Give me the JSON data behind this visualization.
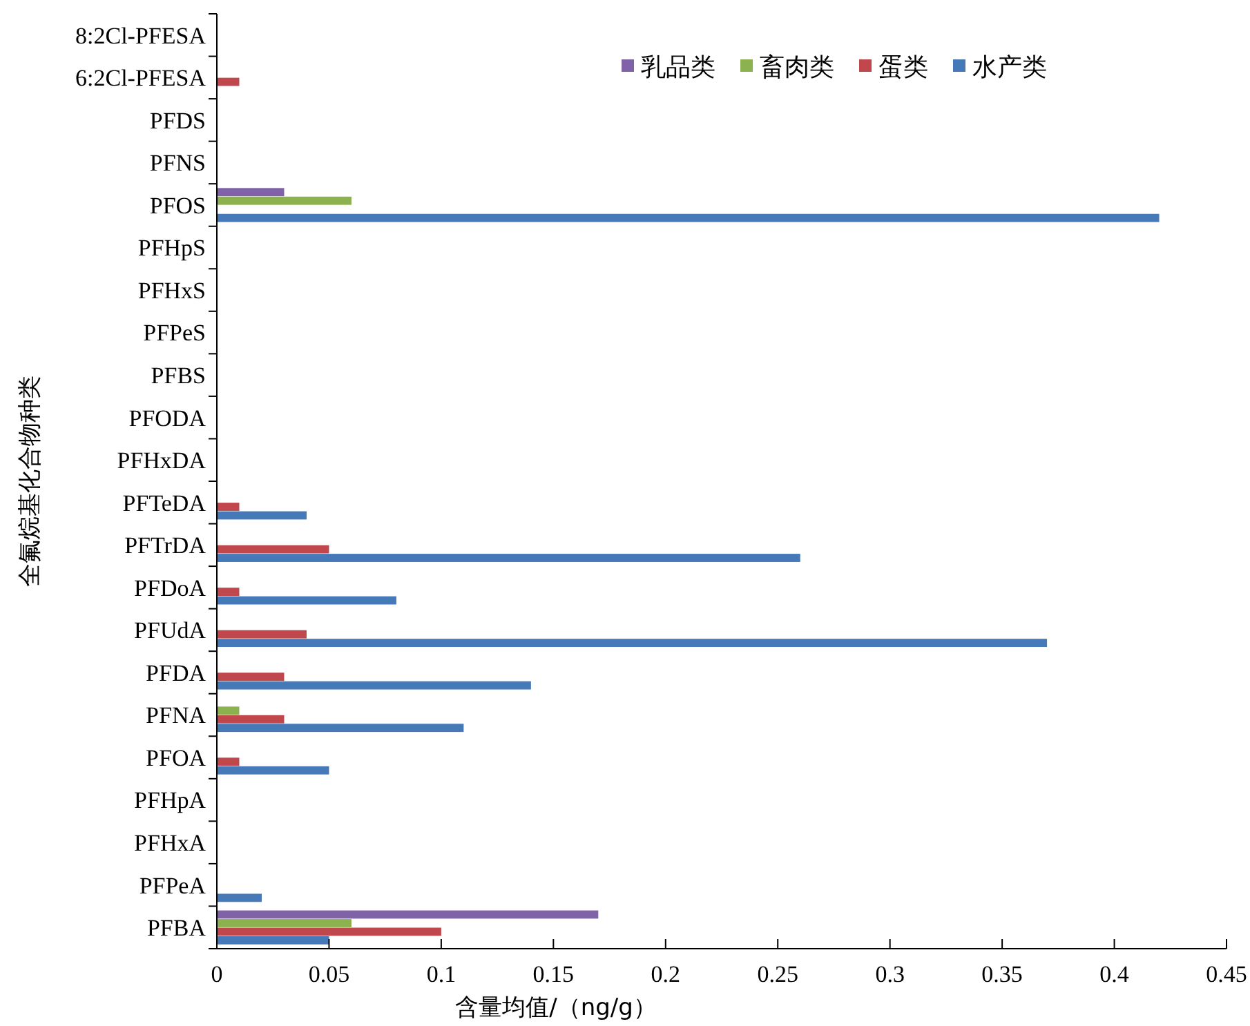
{
  "chart_data": {
    "type": "bar",
    "orientation": "horizontal",
    "xlabel": "含量均值/（ng/g）",
    "ylabel": "全氟烷基化合物种类",
    "categories": [
      "8:2Cl-PFESA",
      "6:2Cl-PFESA",
      "PFDS",
      "PFNS",
      "PFOS",
      "PFHpS",
      "PFHxS",
      "PFPeS",
      "PFBS",
      "PFODA",
      "PFHxDA",
      "PFTeDA",
      "PFTrDA",
      "PFDoA",
      "PFUdA",
      "PFDA",
      "PFNA",
      "PFOA",
      "PFHpA",
      "PFHxA",
      "PFPeA",
      "PFBA"
    ],
    "series": [
      {
        "name": "乳品类",
        "color": "#7f62a8",
        "values": [
          null,
          null,
          null,
          null,
          0.03,
          null,
          null,
          null,
          null,
          null,
          null,
          null,
          null,
          null,
          null,
          null,
          null,
          null,
          null,
          null,
          null,
          0.17
        ]
      },
      {
        "name": "畜肉类",
        "color": "#8cb250",
        "values": [
          null,
          null,
          null,
          null,
          0.06,
          null,
          null,
          null,
          null,
          null,
          null,
          null,
          null,
          null,
          null,
          null,
          0.01,
          null,
          null,
          null,
          null,
          0.06
        ]
      },
      {
        "name": "蛋类",
        "color": "#c0484c",
        "values": [
          null,
          0.01,
          null,
          null,
          null,
          null,
          null,
          null,
          null,
          null,
          null,
          0.01,
          0.05,
          0.01,
          0.04,
          0.03,
          0.03,
          0.01,
          null,
          null,
          null,
          0.1
        ]
      },
      {
        "name": "水产类",
        "color": "#4679b8",
        "values": [
          null,
          null,
          null,
          null,
          0.42,
          null,
          null,
          null,
          null,
          null,
          null,
          0.04,
          0.26,
          0.08,
          0.37,
          0.14,
          0.11,
          0.05,
          null,
          null,
          0.02,
          0.05
        ]
      }
    ],
    "xlim": [
      0,
      0.45
    ],
    "xticks": [
      0,
      0.05,
      0.1,
      0.15,
      0.2,
      0.25,
      0.3,
      0.35,
      0.4,
      0.45
    ],
    "legend": "top right",
    "grid": false
  }
}
